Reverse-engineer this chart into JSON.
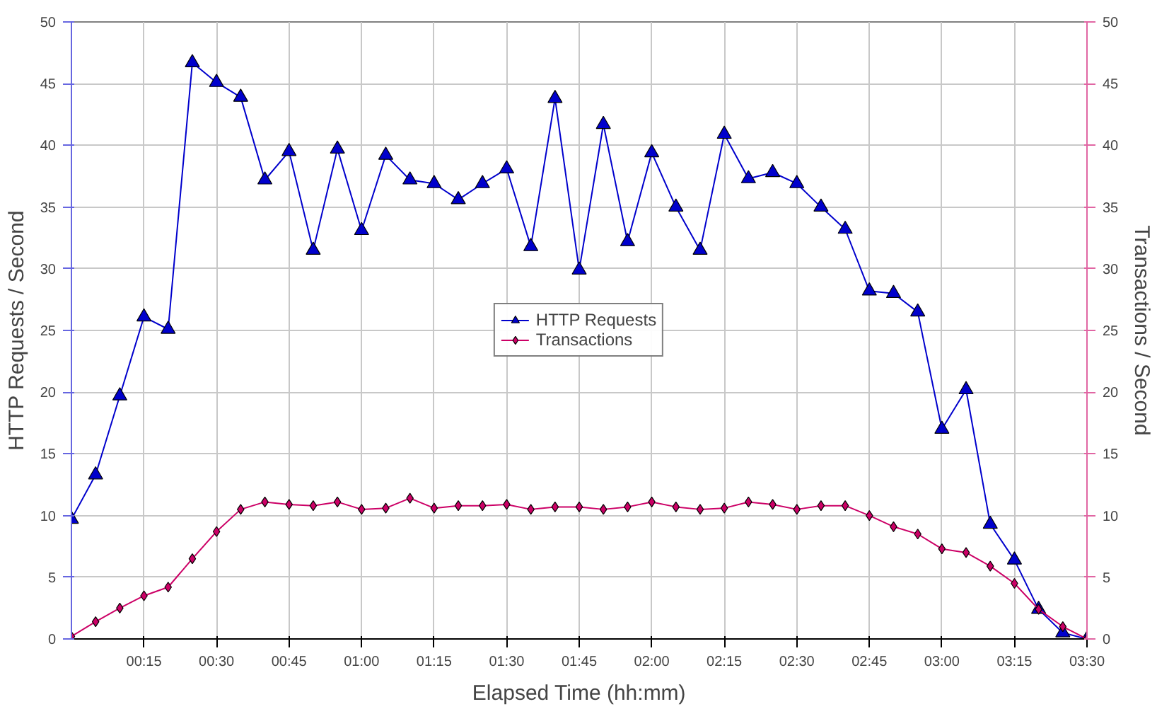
{
  "chart_data": {
    "type": "line",
    "xlabel": "Elapsed Time (hh:mm)",
    "ylabel": "HTTP Requests / Second",
    "y2label": "Transactions / Second",
    "x": [
      0,
      0.0833,
      0.1667,
      0.25,
      0.3333,
      0.4167,
      0.5,
      0.5833,
      0.6667,
      0.75,
      0.8333,
      0.9167,
      1,
      1.0833,
      1.1667,
      1.25,
      1.3333,
      1.4167,
      1.5,
      1.5833,
      1.6667,
      1.75,
      1.8333,
      1.9167,
      2,
      2.0833,
      2.1667,
      2.25,
      2.3333,
      2.4167,
      2.5,
      2.5833,
      2.6667,
      2.75,
      2.8333,
      2.9167,
      3,
      3.0833,
      3.1667,
      3.25,
      3.3333,
      3.4167,
      3.5
    ],
    "series": [
      {
        "name": "HTTP Requests",
        "color": "#0000cc",
        "marker": "triangle",
        "values": [
          9.7,
          13.3,
          19.7,
          26.1,
          25.1,
          46.7,
          45.1,
          43.9,
          37.2,
          39.5,
          31.5,
          39.7,
          33.1,
          39.2,
          37.2,
          36.9,
          35.6,
          36.9,
          38.1,
          31.8,
          43.8,
          29.9,
          41.7,
          32.2,
          39.4,
          35.0,
          31.5,
          40.9,
          37.3,
          37.8,
          36.9,
          35.0,
          33.2,
          28.2,
          28.0,
          26.5,
          17.0,
          20.2,
          9.3,
          6.4,
          2.4,
          0.5,
          0
        ]
      },
      {
        "name": "Transactions",
        "color": "#cc0066",
        "marker": "diamond",
        "axis": "y2",
        "values": [
          0.2,
          1.4,
          2.5,
          3.5,
          4.2,
          6.5,
          8.7,
          10.5,
          11.1,
          10.9,
          10.8,
          11.1,
          10.5,
          10.6,
          11.4,
          10.6,
          10.8,
          10.8,
          10.9,
          10.5,
          10.7,
          10.7,
          10.5,
          10.7,
          11.1,
          10.7,
          10.5,
          10.6,
          11.1,
          10.9,
          10.5,
          10.8,
          10.8,
          10.0,
          9.1,
          8.5,
          7.3,
          7.0,
          5.9,
          4.5,
          2.4,
          1.0,
          0
        ]
      }
    ],
    "xlim": [
      0,
      3.5
    ],
    "xticks": [
      {
        "value": 0.25,
        "label": "00:15"
      },
      {
        "value": 0.5,
        "label": "00:30"
      },
      {
        "value": 0.75,
        "label": "00:45"
      },
      {
        "value": 1,
        "label": "01:00"
      },
      {
        "value": 1.25,
        "label": "01:15"
      },
      {
        "value": 1.5,
        "label": "01:30"
      },
      {
        "value": 1.75,
        "label": "01:45"
      },
      {
        "value": 2,
        "label": "02:00"
      },
      {
        "value": 2.25,
        "label": "02:15"
      },
      {
        "value": 2.5,
        "label": "02:30"
      },
      {
        "value": 2.75,
        "label": "02:45"
      },
      {
        "value": 3,
        "label": "03:00"
      },
      {
        "value": 3.25,
        "label": "03:15"
      },
      {
        "value": 3.5,
        "label": "03:30"
      }
    ],
    "ylim": [
      0,
      50
    ],
    "yticks": [
      0,
      5,
      10,
      15,
      20,
      25,
      30,
      35,
      40,
      45,
      50
    ],
    "y2lim": [
      0,
      50
    ],
    "y2ticks": [
      0,
      5,
      10,
      15,
      20,
      25,
      30,
      35,
      40,
      45,
      50
    ],
    "grid": true,
    "legend": "center",
    "line_style": "solid"
  }
}
